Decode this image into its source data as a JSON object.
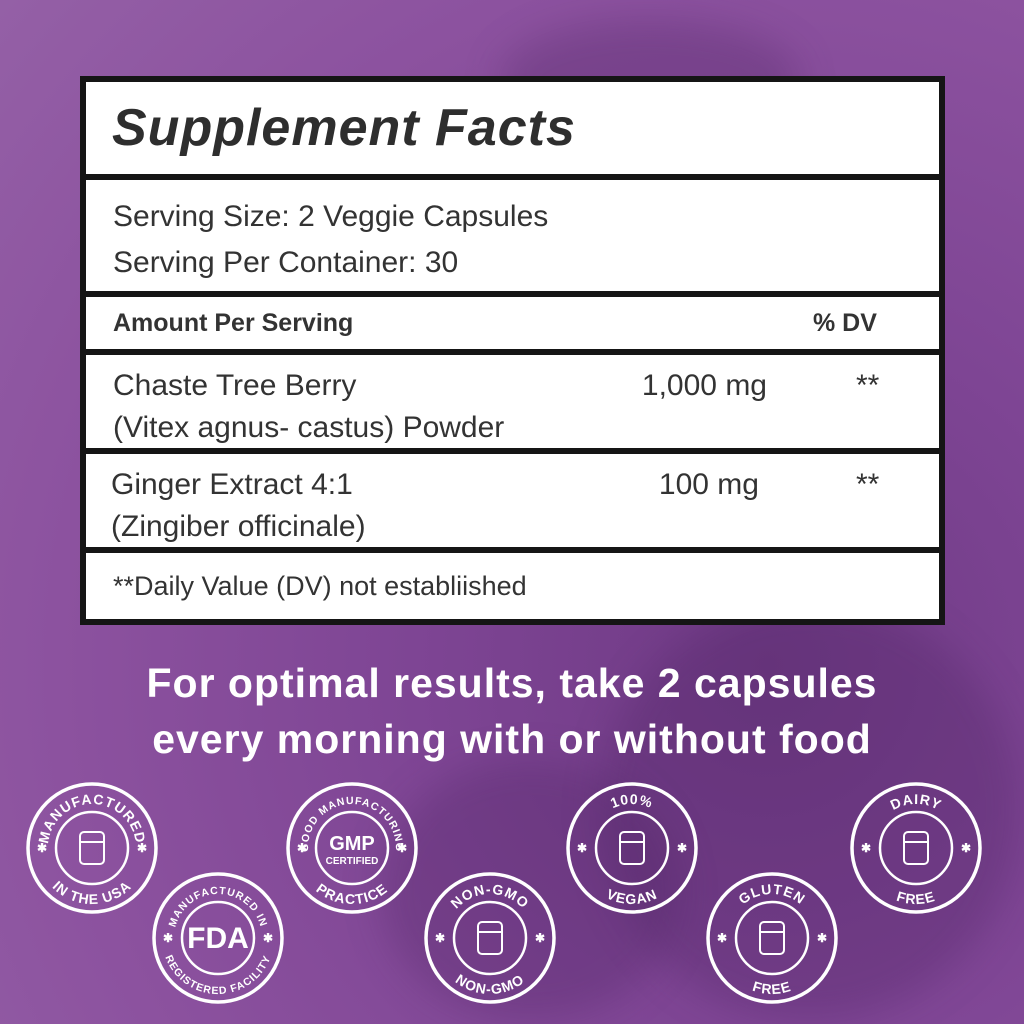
{
  "facts": {
    "title": "Supplement Facts",
    "serving_size": "Serving Size: 2 Veggie Capsules",
    "servings_per_container": "Serving Per Container: 30",
    "header": {
      "amount": "Amount Per Serving",
      "dv": "% DV"
    },
    "rows": [
      {
        "name": "Chaste Tree Berry",
        "detail": "(Vitex agnus- castus) Powder",
        "amount": "1,000 mg",
        "dv": "**"
      },
      {
        "name": "Ginger Extract 4:1",
        "detail": "(Zingiber officinale)",
        "amount": "100 mg",
        "dv": "**"
      }
    ],
    "footnote": "**Daily Value (DV)  not establiished"
  },
  "directions": [
    "For optimal results, take 2 capsules",
    "every morning with or without food"
  ],
  "badges": [
    {
      "top": "MANUFACTURED",
      "center": [],
      "bottom": "IN THE USA"
    },
    {
      "top": "GOOD MANUFACTURING",
      "center": [
        "GMP",
        "CERTIFIED"
      ],
      "bottom": "PRACTICE"
    },
    {
      "top": "100%",
      "center": [],
      "bottom": "VEGAN"
    },
    {
      "top": "DAIRY",
      "center": [],
      "bottom": "FREE"
    },
    {
      "top": "MANUFACTURED IN",
      "center": [
        "FDA"
      ],
      "bottom": "REGISTERED FACILITY"
    },
    {
      "top": "NON-GMO",
      "center": [],
      "bottom": "NON-GMO"
    },
    {
      "top": "GLUTEN",
      "center": [],
      "bottom": "FREE"
    }
  ]
}
